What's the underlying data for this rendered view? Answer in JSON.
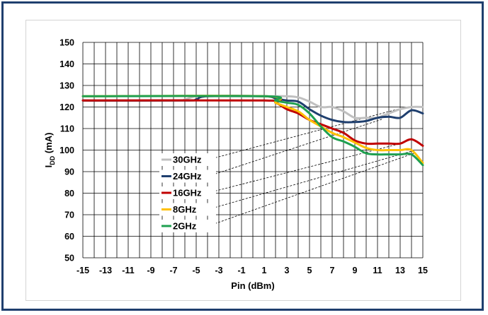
{
  "chart_data": {
    "type": "line",
    "title": "",
    "xlabel": "Pin (dBm)",
    "ylabel_main": "I",
    "ylabel_sub": "DD",
    "ylabel_unit": " (mA)",
    "xlim": [
      -15,
      15
    ],
    "ylim": [
      50,
      150
    ],
    "xticks": [
      -15,
      -13,
      -11,
      -9,
      -7,
      -5,
      -3,
      -1,
      1,
      3,
      5,
      7,
      9,
      11,
      13,
      15
    ],
    "yticks": [
      50,
      60,
      70,
      80,
      90,
      100,
      110,
      120,
      130,
      140,
      150
    ],
    "grid": true,
    "legend_placement": "lower-center",
    "series": [
      {
        "name": "30GHz",
        "color": "#c0c0c0",
        "points": [
          [
            -15,
            123
          ],
          [
            -7,
            123
          ],
          [
            -6,
            123.5
          ],
          [
            -5,
            125
          ],
          [
            -3,
            125
          ],
          [
            1,
            125
          ],
          [
            3,
            125
          ],
          [
            4,
            124.5
          ],
          [
            5,
            122.5
          ],
          [
            6,
            120
          ],
          [
            7,
            120
          ],
          [
            8,
            118
          ],
          [
            9,
            115
          ],
          [
            10,
            115
          ],
          [
            11,
            115
          ],
          [
            11.5,
            116
          ],
          [
            12,
            117
          ],
          [
            13,
            119
          ],
          [
            14,
            120
          ],
          [
            15,
            120
          ]
        ],
        "legend_anchor": [
          13.5,
          120
        ]
      },
      {
        "name": "24GHz",
        "color": "#1f3f6e",
        "points": [
          [
            -15,
            123
          ],
          [
            -6,
            123
          ],
          [
            -5,
            123.5
          ],
          [
            -4,
            125
          ],
          [
            1,
            125
          ],
          [
            2,
            124
          ],
          [
            3,
            123
          ],
          [
            4,
            122.5
          ],
          [
            5,
            119
          ],
          [
            6,
            116
          ],
          [
            7,
            114
          ],
          [
            8,
            113
          ],
          [
            9,
            113
          ],
          [
            10,
            113.5
          ],
          [
            11,
            115
          ],
          [
            12,
            115.5
          ],
          [
            13,
            115
          ],
          [
            14,
            118.5
          ],
          [
            15,
            117
          ]
        ],
        "legend_anchor": [
          11.5,
          114.5
        ]
      },
      {
        "name": "16GHz",
        "color": "#c00000",
        "points": [
          [
            -15,
            123
          ],
          [
            1,
            123
          ],
          [
            2,
            122
          ],
          [
            3,
            119
          ],
          [
            4,
            117
          ],
          [
            5,
            114
          ],
          [
            6,
            112
          ],
          [
            7,
            110
          ],
          [
            8,
            108
          ],
          [
            9,
            104.5
          ],
          [
            10,
            103
          ],
          [
            11,
            103
          ],
          [
            12,
            103
          ],
          [
            13,
            103
          ],
          [
            14,
            105
          ],
          [
            15,
            102
          ]
        ],
        "legend_anchor": [
          13,
          103
        ]
      },
      {
        "name": "8GHz",
        "color": "#ffc000",
        "points": [
          [
            -15,
            125
          ],
          [
            1,
            125
          ],
          [
            2,
            122
          ],
          [
            3,
            120
          ],
          [
            4,
            118
          ],
          [
            5,
            114
          ],
          [
            6,
            111
          ],
          [
            7,
            108
          ],
          [
            8,
            106
          ],
          [
            9,
            103.5
          ],
          [
            10,
            101
          ],
          [
            11,
            100
          ],
          [
            12,
            100
          ],
          [
            13,
            100
          ],
          [
            14,
            100
          ],
          [
            15,
            94
          ]
        ],
        "legend_anchor": [
          14,
          99.5
        ]
      },
      {
        "name": "2GHz",
        "color": "#1fa050",
        "points": [
          [
            -15,
            125
          ],
          [
            1,
            125
          ],
          [
            2,
            123
          ],
          [
            3,
            122
          ],
          [
            4,
            121
          ],
          [
            5,
            117
          ],
          [
            6,
            111
          ],
          [
            7,
            106
          ],
          [
            8,
            104
          ],
          [
            9,
            101.5
          ],
          [
            10,
            98.5
          ],
          [
            11,
            98
          ],
          [
            12,
            98
          ],
          [
            13,
            98
          ],
          [
            14,
            98
          ],
          [
            15,
            93
          ]
        ],
        "legend_anchor": [
          14.2,
          98.5
        ]
      }
    ]
  }
}
